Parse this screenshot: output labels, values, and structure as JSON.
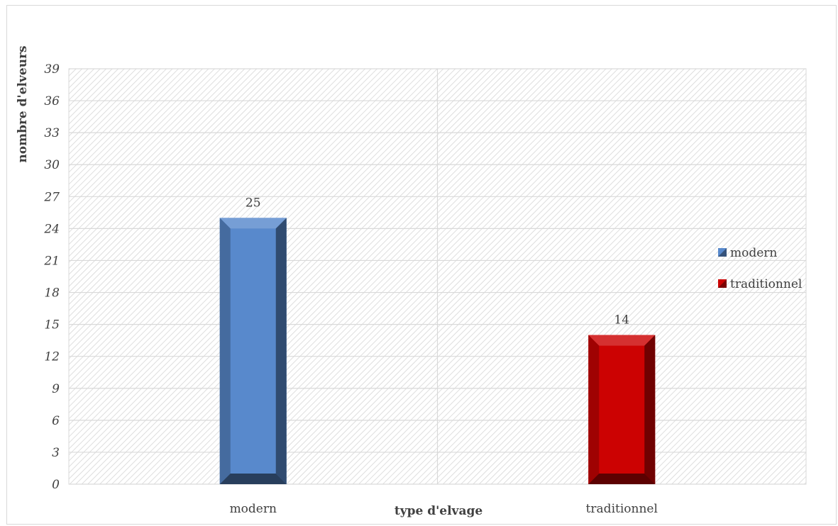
{
  "chart_data": {
    "type": "bar",
    "title": "",
    "xlabel": "type d'elvage",
    "ylabel": "nombre d'elveurs",
    "categories": [
      "modern",
      "traditionnel"
    ],
    "series": [
      {
        "name": "modern",
        "values": [
          25,
          null
        ],
        "color": "#5889cc"
      },
      {
        "name": "traditionnel",
        "values": [
          null,
          14
        ],
        "color": "#cc0202"
      }
    ],
    "data_labels": [
      "25",
      "14"
    ],
    "ylim": [
      0,
      39
    ],
    "yticks": [
      0,
      3,
      6,
      9,
      12,
      15,
      18,
      21,
      24,
      27,
      30,
      33,
      36,
      39
    ],
    "grid": true,
    "legend_position": "right",
    "plot_background": "hatched"
  }
}
